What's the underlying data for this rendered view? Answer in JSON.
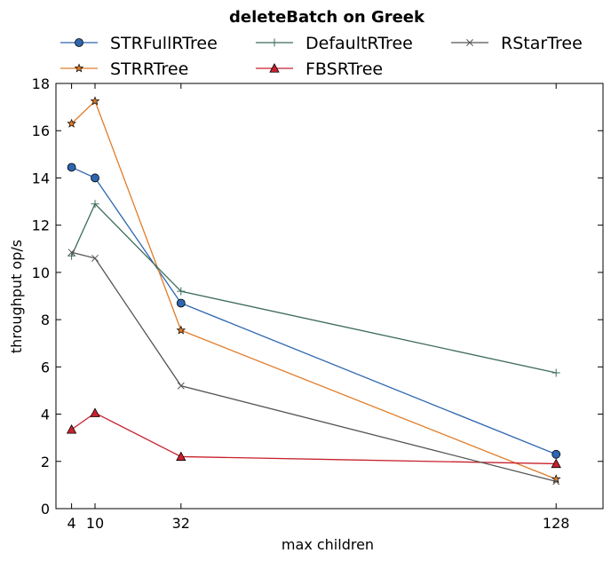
{
  "chart_data": {
    "type": "line",
    "title": "deleteBatch on Greek",
    "xlabel": "max children",
    "ylabel": "throughput op/s",
    "x": [
      4,
      10,
      32,
      128
    ],
    "x_ticks": [
      4,
      10,
      32,
      128
    ],
    "y_ticks": [
      0,
      2,
      4,
      6,
      8,
      10,
      12,
      14,
      16,
      18
    ],
    "xlim": [
      0,
      140
    ],
    "ylim": [
      0,
      18
    ],
    "grid": false,
    "legend_position": "top, above plot, 3 columns",
    "series": [
      {
        "name": "STRFullRTree",
        "color": "#2e66b0",
        "marker": "circle",
        "values": [
          14.45,
          14.0,
          8.7,
          2.3
        ]
      },
      {
        "name": "STRRTree",
        "color": "#e07b28",
        "marker": "star",
        "values": [
          16.3,
          17.25,
          7.55,
          1.25
        ]
      },
      {
        "name": "DefaultRTree",
        "color": "#3d6b58",
        "marker": "plus",
        "values": [
          10.7,
          12.9,
          9.2,
          5.75
        ]
      },
      {
        "name": "FBSRTree",
        "color": "#c8222e",
        "marker": "triangle",
        "values": [
          3.35,
          4.05,
          2.2,
          1.9
        ]
      },
      {
        "name": "RStarTree",
        "color": "#555555",
        "marker": "x",
        "values": [
          10.85,
          10.6,
          5.2,
          1.15
        ]
      }
    ]
  }
}
